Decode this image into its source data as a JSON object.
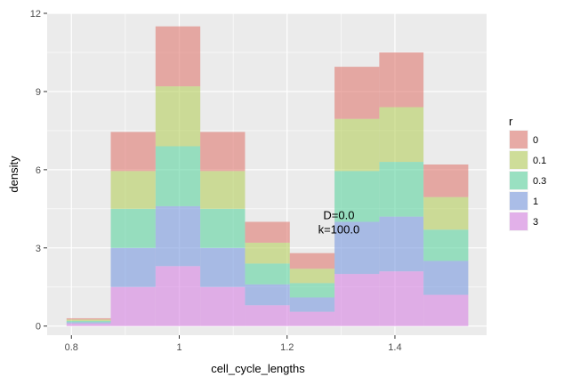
{
  "chart_data": {
    "type": "bar",
    "stacked": true,
    "xlabel": "cell_cycle_lengths",
    "ylabel": "density",
    "xlim": [
      0.755,
      1.57
    ],
    "ylim": [
      -0.35,
      12.0
    ],
    "x_ticks": [
      0.8,
      1.0,
      1.2,
      1.4
    ],
    "x_tick_labels": [
      "0.8",
      "1",
      "1.2",
      "1.4"
    ],
    "y_ticks": [
      0,
      3,
      6,
      9,
      12
    ],
    "y_tick_labels": [
      "0",
      "3",
      "6",
      "9",
      "12"
    ],
    "bins": [
      {
        "left": 0.791,
        "right": 0.873
      },
      {
        "left": 0.873,
        "right": 0.956
      },
      {
        "left": 0.956,
        "right": 1.039
      },
      {
        "left": 1.039,
        "right": 1.122
      },
      {
        "left": 1.122,
        "right": 1.205
      },
      {
        "left": 1.205,
        "right": 1.288
      },
      {
        "left": 1.288,
        "right": 1.371
      },
      {
        "left": 1.371,
        "right": 1.453
      },
      {
        "left": 1.453,
        "right": 1.536
      }
    ],
    "series": [
      {
        "name": "3",
        "color": "#d783e2",
        "values": [
          0.1,
          1.5,
          2.3,
          1.5,
          0.8,
          0.55,
          2.0,
          2.1,
          1.2
        ]
      },
      {
        "name": "1",
        "color": "#7a9ae0",
        "values": [
          0.05,
          1.5,
          2.3,
          1.5,
          0.8,
          0.55,
          2.0,
          2.1,
          1.3
        ]
      },
      {
        "name": "0.3",
        "color": "#5dd4a0",
        "values": [
          0.05,
          1.5,
          2.3,
          1.5,
          0.8,
          0.55,
          1.95,
          2.1,
          1.2
        ]
      },
      {
        "name": "0.1",
        "color": "#b6ce5e",
        "values": [
          0.05,
          1.45,
          2.3,
          1.45,
          0.8,
          0.55,
          2.0,
          2.1,
          1.25
        ]
      },
      {
        "name": "0",
        "color": "#e07a72",
        "values": [
          0.05,
          1.5,
          2.3,
          1.5,
          0.8,
          0.6,
          2.0,
          2.1,
          1.25
        ]
      }
    ],
    "legend": {
      "title": "r",
      "placement": "right",
      "entries": [
        {
          "label": "0",
          "color": "#e07a72"
        },
        {
          "label": "0.1",
          "color": "#b6ce5e"
        },
        {
          "label": "0.3",
          "color": "#5dd4a0"
        },
        {
          "label": "1",
          "color": "#7a9ae0"
        },
        {
          "label": "3",
          "color": "#d783e2"
        }
      ]
    },
    "annotations": [
      {
        "text": "D=0.0",
        "x": 1.296,
        "y": 4.1
      },
      {
        "text": "k=100.0",
        "x": 1.296,
        "y": 3.55
      }
    ],
    "panel_background": "#ebebeb",
    "grid_color": "#ffffff",
    "fill_alpha": 0.6
  }
}
